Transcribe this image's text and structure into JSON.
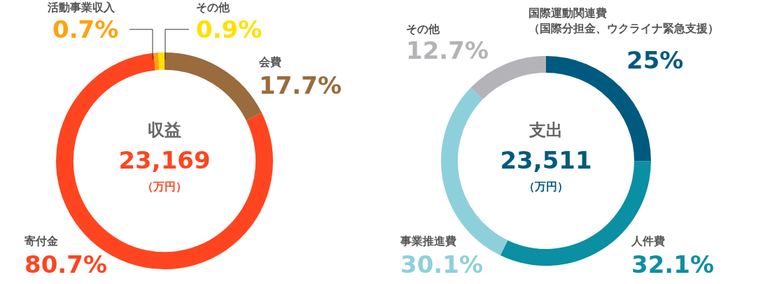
{
  "chart_data": [
    {
      "type": "donut",
      "title": "収益",
      "annotations": [
        "23,169",
        "（万円）"
      ],
      "categories": [
        "会費",
        "寄付金",
        "活動事業収入",
        "その他"
      ],
      "values": [
        17.7,
        80.7,
        0.7,
        0.9
      ],
      "value_labels": [
        "17.7%",
        "80.7%",
        "0.7%",
        "0.9%"
      ],
      "colors": [
        "#9a6b3c",
        "#ff4520",
        "#ffa20f",
        "#ffe000"
      ]
    },
    {
      "type": "donut",
      "title": "支出",
      "annotations": [
        "23,511",
        "（万円）"
      ],
      "categories": [
        "国際運動関連費（国際分担金、ウクライナ緊急支援）",
        "人件費",
        "事業推進費",
        "その他"
      ],
      "values": [
        25,
        32.1,
        30.1,
        12.7
      ],
      "value_labels": [
        "25%",
        "32.1%",
        "30.1%",
        "12.7%"
      ],
      "colors": [
        "#005a7f",
        "#0b8fa3",
        "#8dd0dc",
        "#b4b3b7"
      ]
    }
  ]
}
